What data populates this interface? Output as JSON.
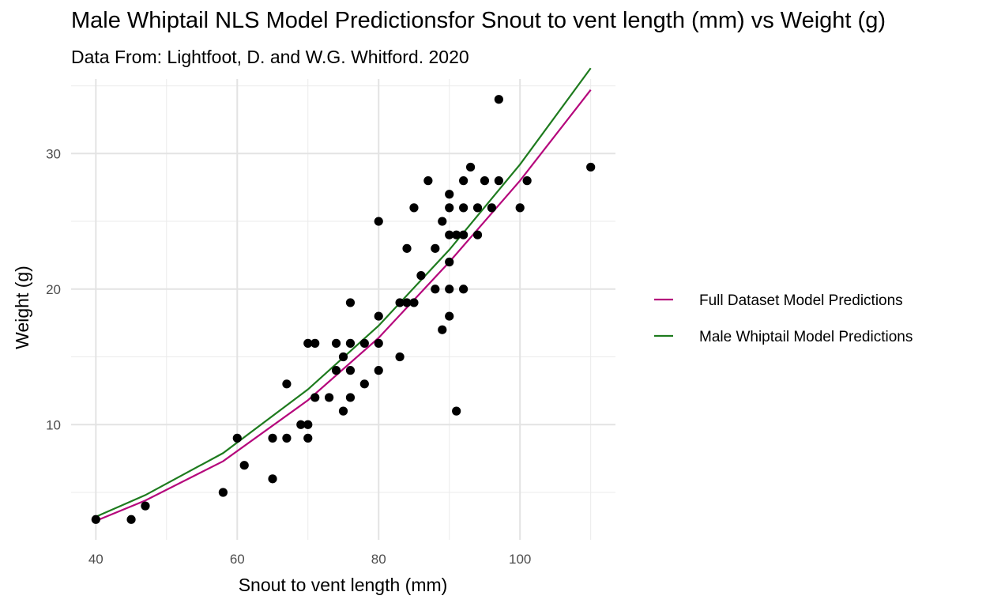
{
  "chart_data": {
    "type": "scatter",
    "title": "Male Whiptail NLS Model Predictionsfor Snout to vent length (mm) vs Weight (g)",
    "subtitle": "Data From: Lightfoot, D. and W.G. Whitford. 2020",
    "xlabel": "Snout to vent length (mm)",
    "ylabel": "Weight (g)",
    "xlim": [
      36.5,
      113.5
    ],
    "ylim": [
      1.5,
      35.5
    ],
    "xticks": [
      40,
      60,
      80,
      100
    ],
    "yticks": [
      10,
      20,
      30
    ],
    "grid": true,
    "legend_position": "right",
    "points": [
      [
        40,
        3
      ],
      [
        45,
        3
      ],
      [
        47,
        4
      ],
      [
        58,
        5
      ],
      [
        60,
        9
      ],
      [
        61,
        7
      ],
      [
        65,
        9
      ],
      [
        65,
        6
      ],
      [
        67,
        13
      ],
      [
        67,
        9
      ],
      [
        69,
        10
      ],
      [
        70,
        16
      ],
      [
        70,
        10
      ],
      [
        70,
        9
      ],
      [
        71,
        16
      ],
      [
        71,
        12
      ],
      [
        73,
        12
      ],
      [
        74,
        16
      ],
      [
        74,
        14
      ],
      [
        75,
        15
      ],
      [
        75,
        11
      ],
      [
        76,
        19
      ],
      [
        76,
        16
      ],
      [
        76,
        14
      ],
      [
        76,
        12
      ],
      [
        78,
        16
      ],
      [
        78,
        13
      ],
      [
        80,
        25
      ],
      [
        80,
        18
      ],
      [
        80,
        16
      ],
      [
        80,
        14
      ],
      [
        83,
        19
      ],
      [
        83,
        15
      ],
      [
        84,
        23
      ],
      [
        84,
        19
      ],
      [
        85,
        26
      ],
      [
        85,
        19
      ],
      [
        86,
        21
      ],
      [
        87,
        28
      ],
      [
        88,
        23
      ],
      [
        88,
        20
      ],
      [
        89,
        25
      ],
      [
        89,
        17
      ],
      [
        90,
        27
      ],
      [
        90,
        26
      ],
      [
        90,
        24
      ],
      [
        90,
        22
      ],
      [
        90,
        20
      ],
      [
        90,
        18
      ],
      [
        91,
        24
      ],
      [
        91,
        11
      ],
      [
        92,
        28
      ],
      [
        92,
        26
      ],
      [
        92,
        24
      ],
      [
        92,
        20
      ],
      [
        93,
        29
      ],
      [
        94,
        26
      ],
      [
        94,
        24
      ],
      [
        95,
        28
      ],
      [
        96,
        26
      ],
      [
        97,
        34
      ],
      [
        97,
        28
      ],
      [
        100,
        26
      ],
      [
        101,
        28
      ],
      [
        110,
        29
      ]
    ],
    "series": [
      {
        "name": "Full Dataset Model Predictions",
        "color": "#B5077C",
        "x": [
          40,
          47,
          58,
          70,
          80,
          90,
          100,
          110
        ],
        "y": [
          2.9,
          4.4,
          7.3,
          11.8,
          16.4,
          22.0,
          28.0,
          34.7
        ]
      },
      {
        "name": "Male Whiptail Model Predictions",
        "color": "#1E7B1E",
        "x": [
          40,
          47,
          58,
          70,
          80,
          90,
          100,
          110
        ],
        "y": [
          3.2,
          4.8,
          7.9,
          12.6,
          17.3,
          22.9,
          29.2,
          36.3
        ]
      }
    ],
    "point_color": "#000000"
  }
}
